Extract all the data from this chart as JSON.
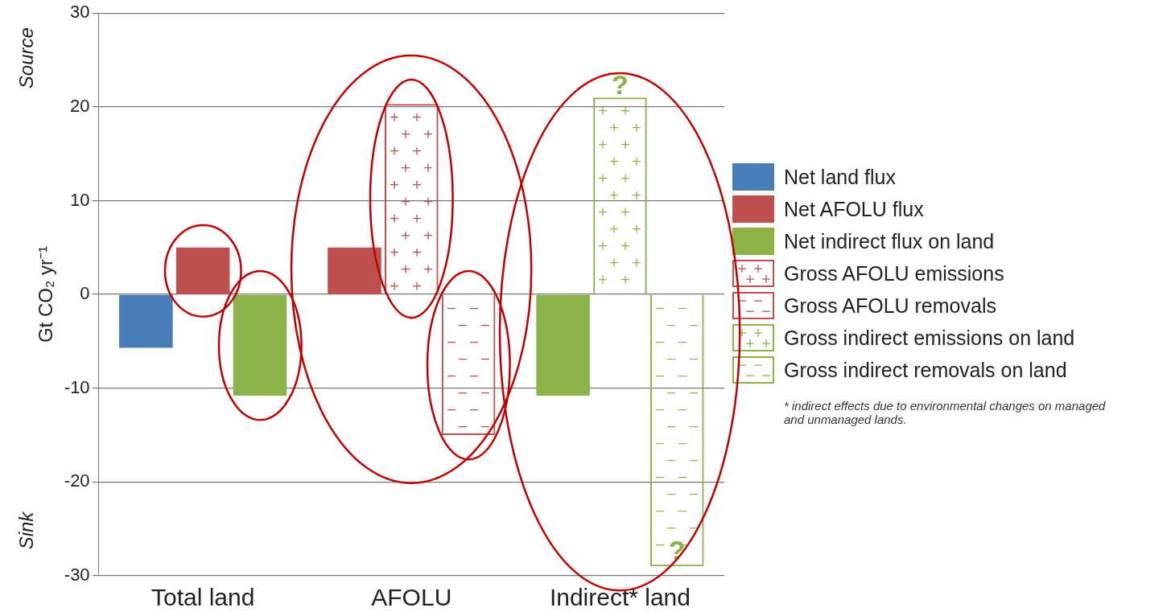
{
  "chart_data": {
    "type": "bar",
    "ylabel": "Gt CO₂ yr⁻¹",
    "categories": [
      "Total land",
      "AFOLU",
      "Indirect* land"
    ],
    "series": [
      {
        "name": "Net land flux",
        "color": "#4a7ebb",
        "values": [
          -5.7,
          null,
          null
        ]
      },
      {
        "name": "Net AFOLU flux",
        "color": "#c0504d",
        "values": [
          5,
          5,
          null
        ]
      },
      {
        "name": "Net indirect flux on land",
        "color": "#8cb34a",
        "values": [
          -10.8,
          null,
          -10.8
        ]
      },
      {
        "name": "Gross AFOLU emissions",
        "color": "#c0504d",
        "values": [
          null,
          20.3,
          null
        ],
        "marker": "cross"
      },
      {
        "name": "Gross AFOLU removals",
        "color": "#c0504d",
        "values": [
          null,
          -15,
          null
        ],
        "line_style": "dashed"
      },
      {
        "name": "Gross indirect emissions on land",
        "color": "#8cb34a",
        "values": [
          null,
          null,
          21
        ],
        "marker": "cross"
      },
      {
        "name": "Gross indirect removals on land",
        "color": "#8cb34a",
        "values": [
          null,
          null,
          -29
        ],
        "line_style": "dashed"
      }
    ],
    "ylim": [
      -30,
      30
    ],
    "yticks": [
      -30,
      -20,
      -10,
      0,
      10,
      20,
      30
    ],
    "grid": "y",
    "legend": "right",
    "annotations": [
      "Source",
      "Sink",
      "* indirect effects due to environmental changes on managed and unmanaged lands.",
      "?",
      "?"
    ]
  }
}
